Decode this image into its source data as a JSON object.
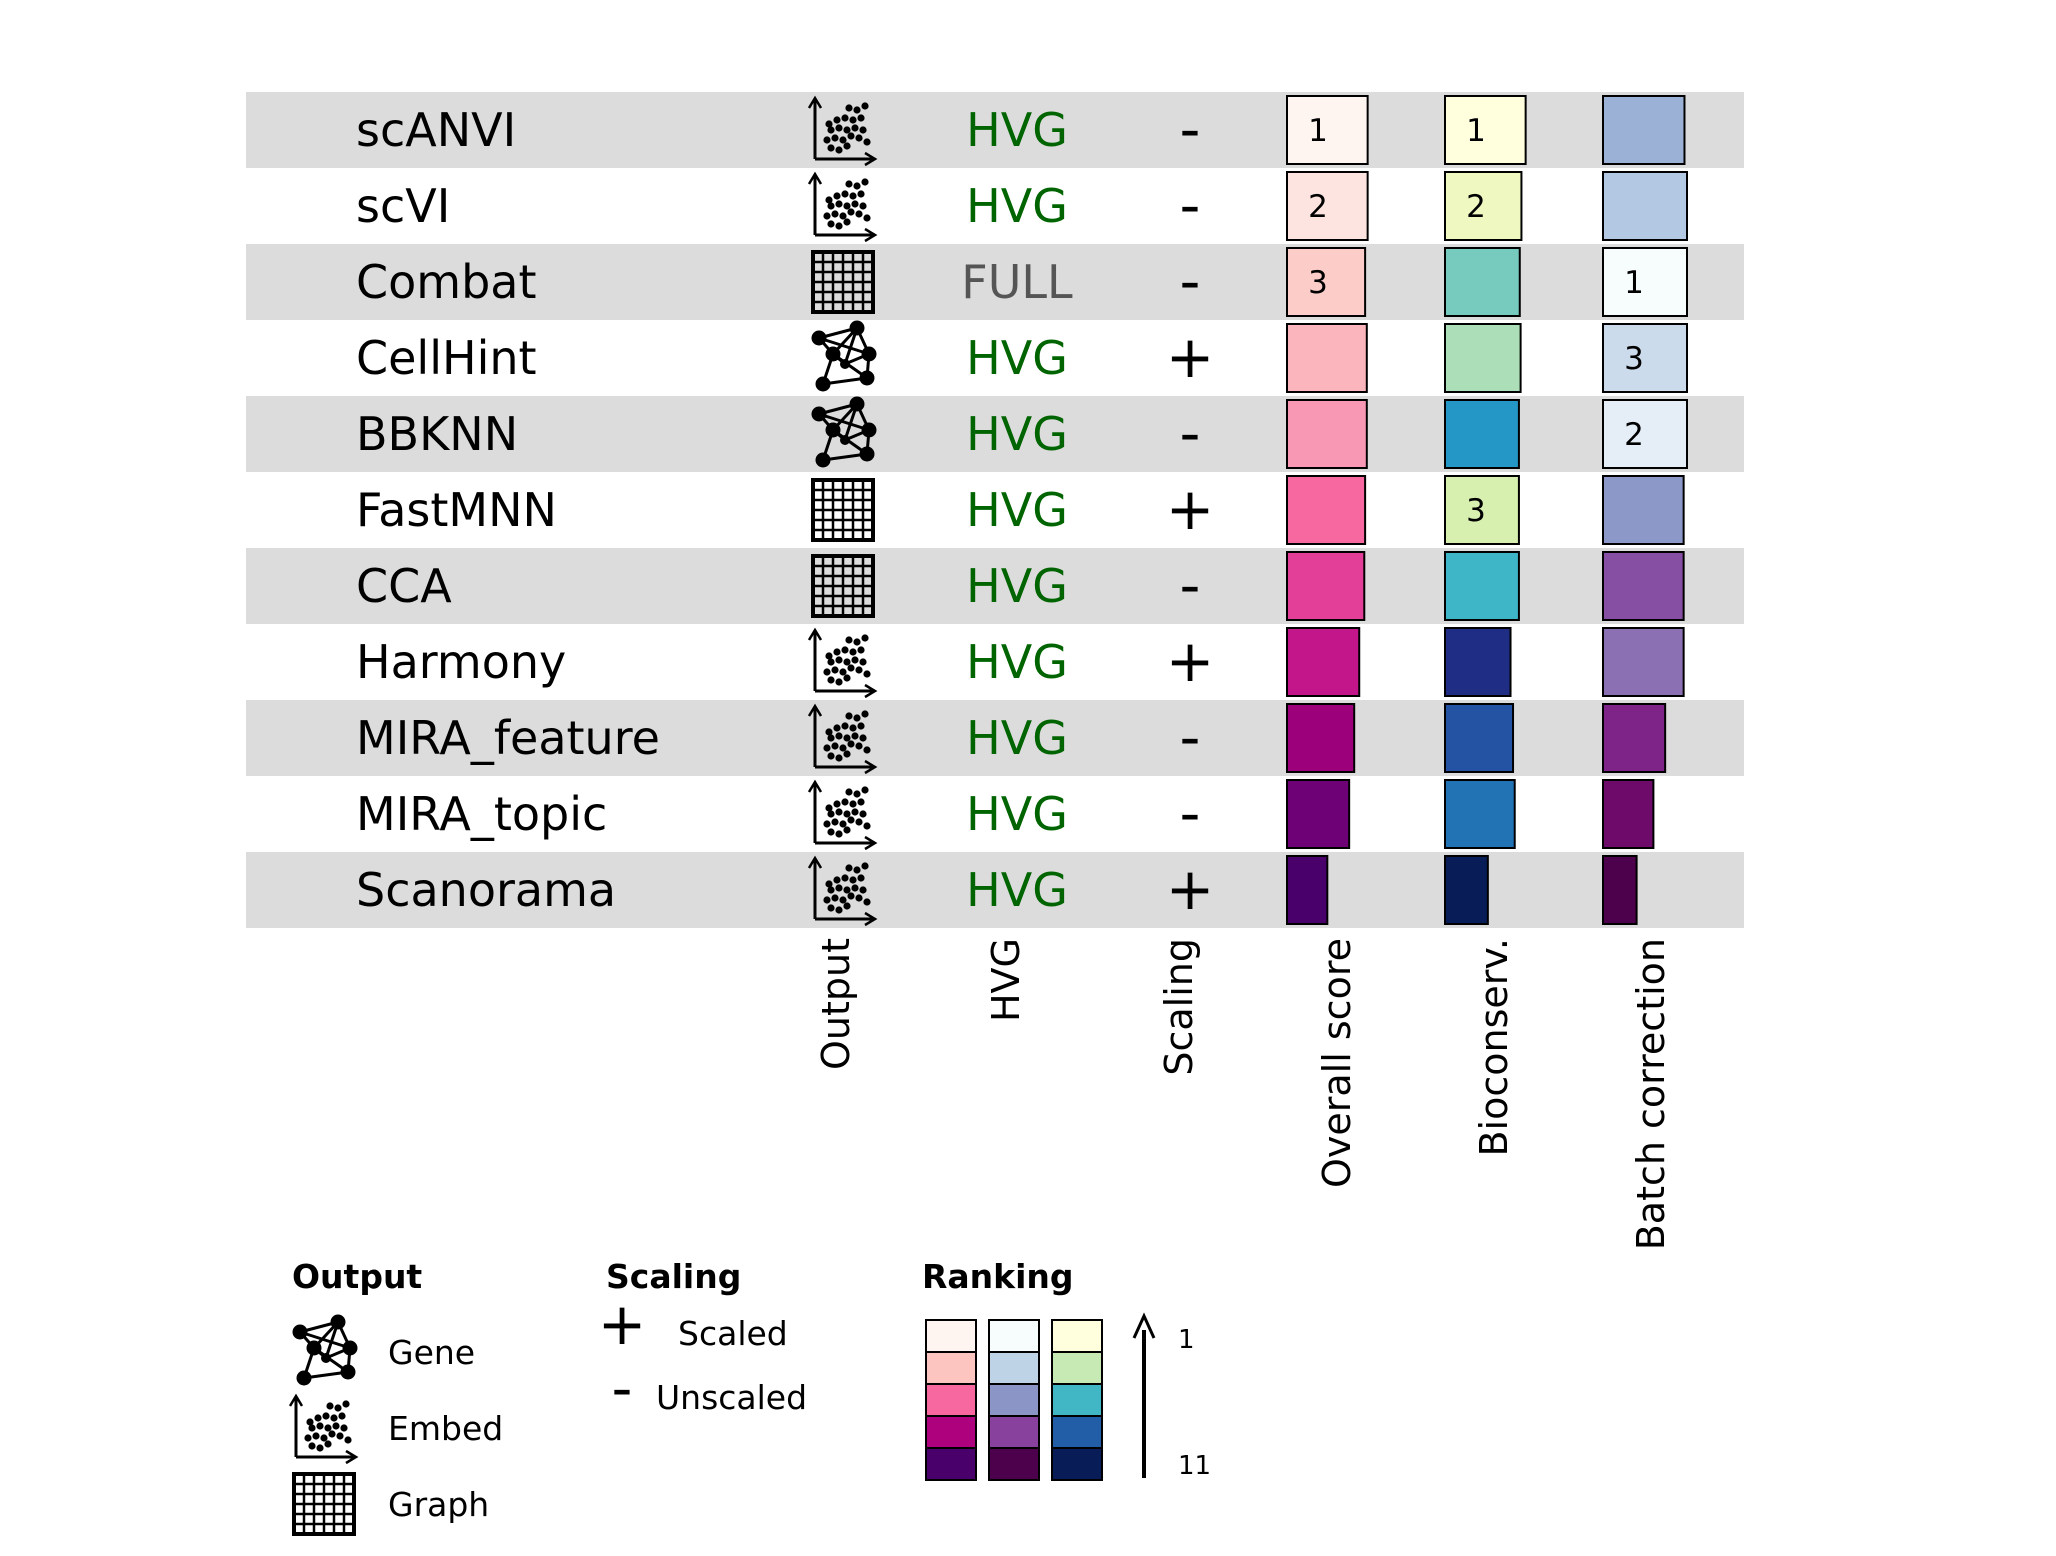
{
  "chart_data": {
    "type": "table",
    "columns": [
      "Output",
      "HVG",
      "Scaling",
      "Overall score",
      "Bioconserv.",
      "Batch correction"
    ],
    "rows": [
      {
        "method": "scANVI",
        "output": "embed",
        "hvg": "HVG",
        "scaling": "-",
        "overall": {
          "score": 0.96,
          "rank": 1,
          "color": "#fff5f0",
          "label": "1"
        },
        "bio": {
          "score": 0.96,
          "rank": 1,
          "color": "#ffffdd",
          "label": "1"
        },
        "batch": {
          "score": 0.97,
          "rank": 7,
          "color": "#9bb2d6",
          "label": ""
        }
      },
      {
        "method": "scVI",
        "output": "embed",
        "hvg": "HVG",
        "scaling": "-",
        "overall": {
          "score": 0.96,
          "rank": 2,
          "color": "#fde4e1",
          "label": "2"
        },
        "bio": {
          "score": 0.91,
          "rank": 2,
          "color": "#eef8c0",
          "label": "2"
        },
        "batch": {
          "score": 1.0,
          "rank": 4,
          "color": "#b3c8e3",
          "label": ""
        }
      },
      {
        "method": "Combat",
        "output": "graph",
        "hvg": "FULL",
        "scaling": "-",
        "overall": {
          "score": 0.93,
          "rank": 3,
          "color": "#fcccc9",
          "label": "3"
        },
        "bio": {
          "score": 0.89,
          "rank": 5,
          "color": "#76cbbe",
          "label": ""
        },
        "batch": {
          "score": 1.0,
          "rank": 1,
          "color": "#f7fcfd",
          "label": "1"
        }
      },
      {
        "method": "CellHint",
        "output": "gene",
        "hvg": "HVG",
        "scaling": "+",
        "overall": {
          "score": 0.95,
          "rank": 4,
          "color": "#fbb6bd",
          "label": ""
        },
        "bio": {
          "score": 0.9,
          "rank": 4,
          "color": "#acdfb7",
          "label": ""
        },
        "batch": {
          "score": 1.0,
          "rank": 3,
          "color": "#cbdbec",
          "label": "3"
        }
      },
      {
        "method": "BBKNN",
        "output": "gene",
        "hvg": "HVG",
        "scaling": "-",
        "overall": {
          "score": 0.95,
          "rank": 5,
          "color": "#f998b5",
          "label": ""
        },
        "bio": {
          "score": 0.88,
          "rank": 6,
          "color": "#2497c6",
          "label": ""
        },
        "batch": {
          "score": 1.0,
          "rank": 2,
          "color": "#e5eef6",
          "label": "2"
        }
      },
      {
        "method": "FastMNN",
        "output": "graph",
        "hvg": "HVG",
        "scaling": "+",
        "overall": {
          "score": 0.93,
          "rank": 6,
          "color": "#f768a1",
          "label": ""
        },
        "bio": {
          "score": 0.88,
          "rank": 3,
          "color": "#d7f0b0",
          "label": "3"
        },
        "batch": {
          "score": 0.96,
          "rank": 5,
          "color": "#8c98c8",
          "label": ""
        }
      },
      {
        "method": "CCA",
        "output": "graph",
        "hvg": "HVG",
        "scaling": "-",
        "overall": {
          "score": 0.92,
          "rank": 7,
          "color": "#e43f98",
          "label": ""
        },
        "bio": {
          "score": 0.88,
          "rank": 5,
          "color": "#3fb6c8",
          "label": ""
        },
        "batch": {
          "score": 0.96,
          "rank": 8,
          "color": "#874fa3",
          "label": ""
        }
      },
      {
        "method": "Harmony",
        "output": "embed",
        "hvg": "HVG",
        "scaling": "+",
        "overall": {
          "score": 0.86,
          "rank": 8,
          "color": "#c3168a",
          "label": ""
        },
        "bio": {
          "score": 0.78,
          "rank": 10,
          "color": "#1f2e84",
          "label": ""
        },
        "batch": {
          "score": 0.96,
          "rank": 6,
          "color": "#8c70b4",
          "label": ""
        }
      },
      {
        "method": "MIRA_feature",
        "output": "embed",
        "hvg": "HVG",
        "scaling": "-",
        "overall": {
          "score": 0.8,
          "rank": 9,
          "color": "#9c017b",
          "label": ""
        },
        "bio": {
          "score": 0.81,
          "rank": 8,
          "color": "#2453a4",
          "label": ""
        },
        "batch": {
          "score": 0.74,
          "rank": 9,
          "color": "#7e2387",
          "label": ""
        }
      },
      {
        "method": "MIRA_topic",
        "output": "embed",
        "hvg": "HVG",
        "scaling": "-",
        "overall": {
          "score": 0.74,
          "rank": 10,
          "color": "#6f0177",
          "label": ""
        },
        "bio": {
          "score": 0.83,
          "rank": 7,
          "color": "#2273b4",
          "label": ""
        },
        "batch": {
          "score": 0.6,
          "rank": 10,
          "color": "#6e0a6a",
          "label": ""
        }
      },
      {
        "method": "Scanorama",
        "output": "embed",
        "hvg": "HVG",
        "scaling": "+",
        "overall": {
          "score": 0.48,
          "rank": 11,
          "color": "#4a006a",
          "label": ""
        },
        "bio": {
          "score": 0.51,
          "rank": 11,
          "color": "#081d58",
          "label": ""
        },
        "batch": {
          "score": 0.4,
          "rank": 11,
          "color": "#4d004b",
          "label": ""
        }
      }
    ]
  },
  "hvg_colors": {
    "HVG": "#006400",
    "FULL": "#555555"
  },
  "legend": {
    "output": {
      "title": "Output",
      "items": [
        {
          "icon": "gene-graph-icon",
          "label": "Gene"
        },
        {
          "icon": "embed-scatter-icon",
          "label": "Embed"
        },
        {
          "icon": "graph-grid-icon",
          "label": "Graph"
        }
      ]
    },
    "scaling": {
      "title": "Scaling",
      "items": [
        {
          "symbol": "+",
          "label": "Scaled"
        },
        {
          "symbol": "-",
          "label": "Unscaled"
        }
      ]
    },
    "ranking": {
      "title": "Ranking",
      "top_label": "1",
      "bottom_label": "11",
      "swatches": [
        [
          "#fff5f0",
          "#f7fcfd",
          "#ffffdd"
        ],
        [
          "#fcc5c0",
          "#bfd3e6",
          "#c7e9b4"
        ],
        [
          "#f768a1",
          "#8c96c6",
          "#41b6c4"
        ],
        [
          "#ae017e",
          "#88419d",
          "#225ea8"
        ],
        [
          "#49006a",
          "#4d004b",
          "#081d58"
        ]
      ]
    }
  }
}
